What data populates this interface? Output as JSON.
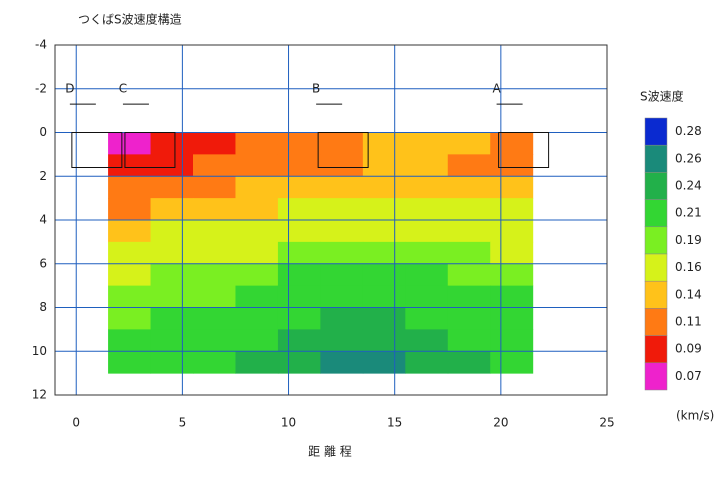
{
  "chart_data": {
    "type": "contour",
    "title": "つくばS波速度構造",
    "xlabel": "距 離 程",
    "xlim": [
      -1,
      25
    ],
    "xticks": [
      0,
      5,
      10,
      15,
      20,
      25
    ],
    "ylim": [
      -4,
      12
    ],
    "yticks": [
      -4,
      -2,
      0,
      2,
      4,
      6,
      8,
      10,
      12
    ],
    "grid": true,
    "grid_color": "#1f5fbf",
    "x": [
      2.5,
      4.5,
      6.5,
      8.5,
      10.5,
      12.5,
      14.5,
      16.5,
      18.5,
      20.5
    ],
    "depths": [
      0.5,
      1.5,
      2.5,
      3.5,
      4.5,
      5.5,
      6.5,
      7.5,
      8.5,
      9.5,
      10.5
    ],
    "z": [
      [
        0.08,
        0.09,
        0.09,
        0.11,
        0.12,
        0.12,
        0.14,
        0.14,
        0.14,
        0.12
      ],
      [
        0.09,
        0.1,
        0.11,
        0.12,
        0.13,
        0.13,
        0.14,
        0.14,
        0.13,
        0.12
      ],
      [
        0.11,
        0.12,
        0.13,
        0.14,
        0.14,
        0.15,
        0.15,
        0.15,
        0.15,
        0.15
      ],
      [
        0.13,
        0.14,
        0.15,
        0.15,
        0.16,
        0.16,
        0.16,
        0.16,
        0.16,
        0.16
      ],
      [
        0.15,
        0.16,
        0.16,
        0.17,
        0.17,
        0.18,
        0.18,
        0.18,
        0.17,
        0.17
      ],
      [
        0.17,
        0.17,
        0.18,
        0.18,
        0.19,
        0.19,
        0.19,
        0.19,
        0.19,
        0.18
      ],
      [
        0.18,
        0.19,
        0.19,
        0.2,
        0.21,
        0.21,
        0.21,
        0.21,
        0.2,
        0.2
      ],
      [
        0.19,
        0.2,
        0.2,
        0.21,
        0.22,
        0.23,
        0.23,
        0.22,
        0.21,
        0.21
      ],
      [
        0.2,
        0.21,
        0.21,
        0.22,
        0.23,
        0.24,
        0.24,
        0.23,
        0.22,
        0.22
      ],
      [
        0.21,
        0.21,
        0.22,
        0.23,
        0.24,
        0.25,
        0.25,
        0.24,
        0.23,
        0.22
      ],
      [
        0.22,
        0.22,
        0.23,
        0.24,
        0.25,
        0.27,
        0.27,
        0.25,
        0.24,
        0.23
      ]
    ],
    "colorbar_title": "S波速度",
    "colorbar_unit": "(km/s)",
    "levels": [
      {
        "value": 0.28,
        "color": "#0a2ad0"
      },
      {
        "value": 0.26,
        "color": "#1a8a7a"
      },
      {
        "value": 0.24,
        "color": "#22b04a"
      },
      {
        "value": 0.21,
        "color": "#33d633"
      },
      {
        "value": 0.19,
        "color": "#7aef22"
      },
      {
        "value": 0.16,
        "color": "#d6f21a"
      },
      {
        "value": 0.14,
        "color": "#ffc21a"
      },
      {
        "value": 0.11,
        "color": "#ff7a14"
      },
      {
        "value": 0.09,
        "color": "#f01a0a"
      },
      {
        "value": 0.07,
        "color": "#ee22cc"
      }
    ],
    "stations": [
      {
        "label": "D",
        "x": -0.3
      },
      {
        "label": "C",
        "x": 2.2
      },
      {
        "label": "B",
        "x": 11.3
      },
      {
        "label": "A",
        "x": 19.8
      }
    ]
  }
}
